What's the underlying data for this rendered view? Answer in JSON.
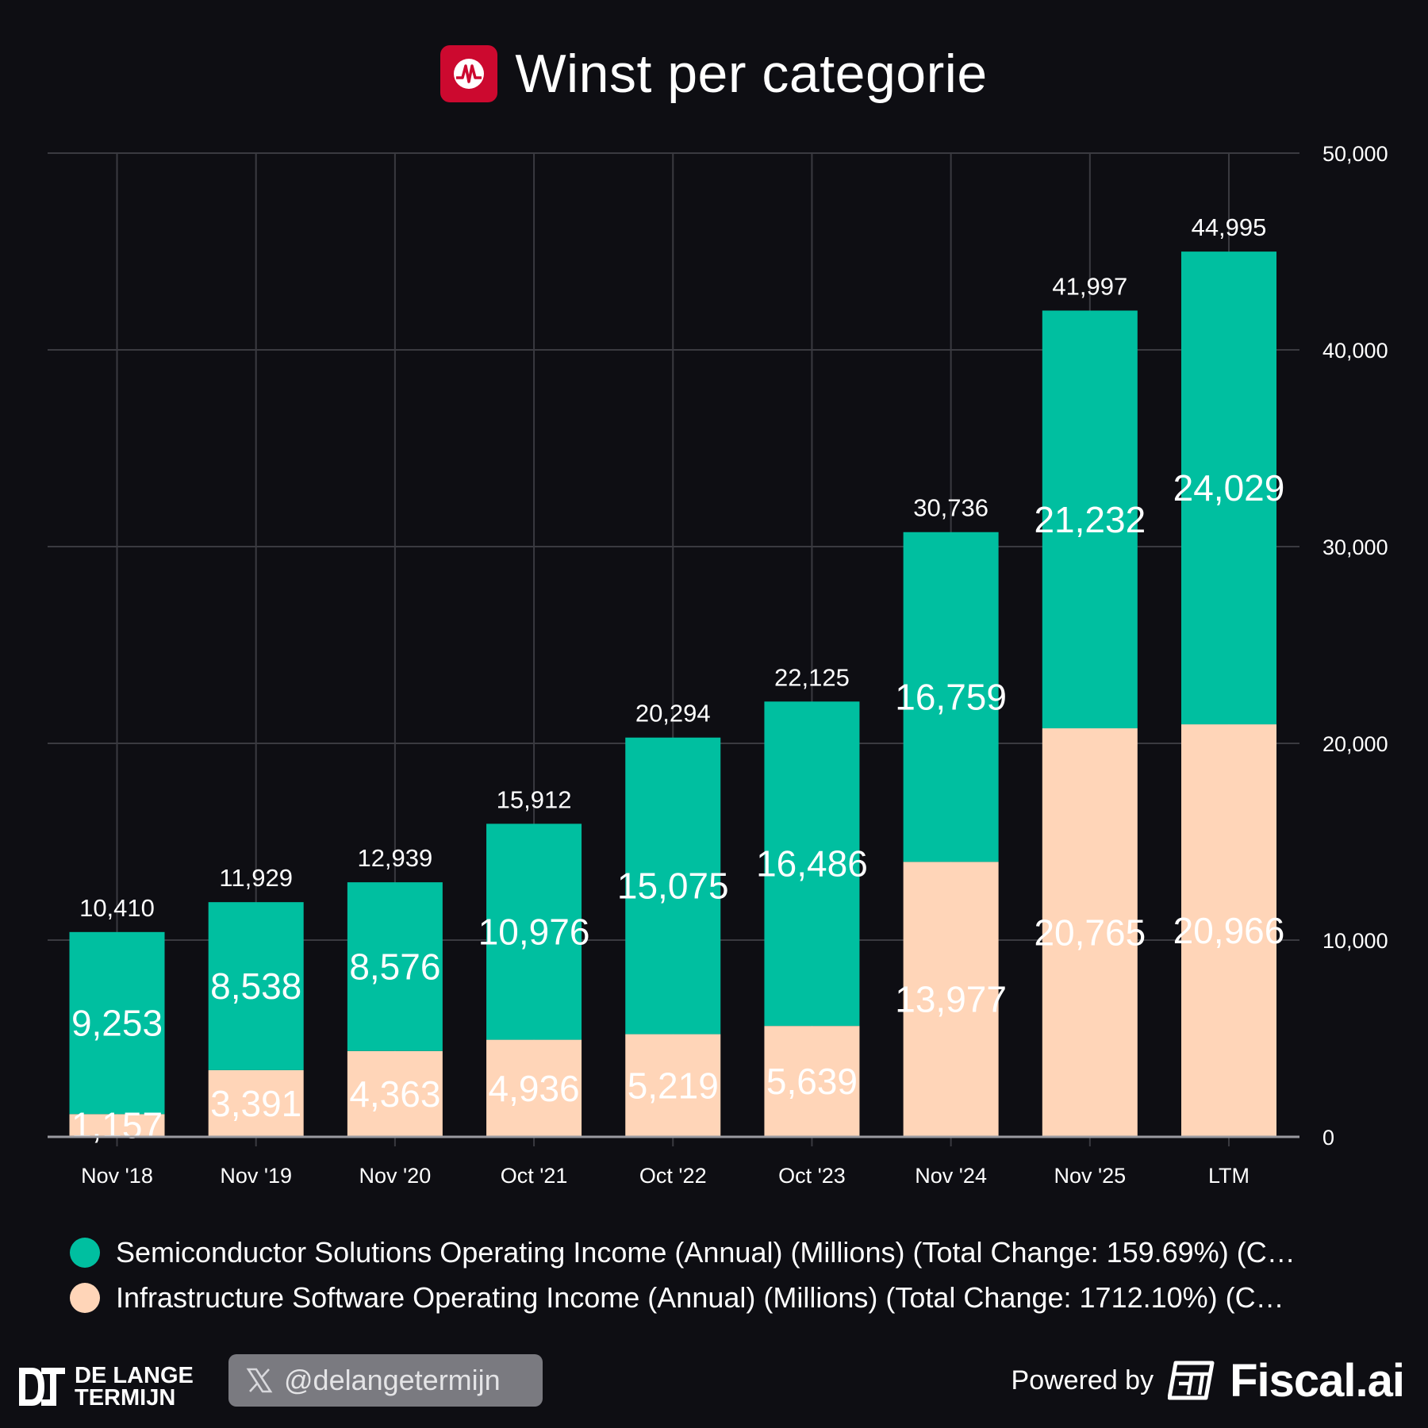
{
  "header": {
    "title": "Winst per categorie",
    "brand_color": "#cc092f"
  },
  "colors": {
    "semiconductor": "#00bfa0",
    "software": "#ffd5b8",
    "background": "#0e0e13",
    "grid": "#3a3a40",
    "axis": "#9a9aa0"
  },
  "chart_data": {
    "type": "bar",
    "stacked": true,
    "title": "Winst per categorie",
    "categories": [
      "Nov '18",
      "Nov '19",
      "Nov '20",
      "Oct '21",
      "Oct '22",
      "Oct '23",
      "Nov '24",
      "Nov '25",
      "LTM"
    ],
    "series": [
      {
        "name": "Infrastructure Software Operating Income (Annual) (Millions)",
        "values": [
          1157,
          3391,
          4363,
          4936,
          5219,
          5639,
          13977,
          20765,
          20966
        ],
        "labels": [
          "1,157",
          "3,391",
          "4,363",
          "4,936",
          "5,219",
          "5,639",
          "13,977",
          "20,765",
          "20,966"
        ]
      },
      {
        "name": "Semiconductor Solutions Operating Income (Annual) (Millions)",
        "values": [
          9253,
          8538,
          8576,
          10976,
          15075,
          16486,
          16759,
          21232,
          24029
        ],
        "labels": [
          "9,253",
          "8,538",
          "8,576",
          "10,976",
          "15,075",
          "16,486",
          "16,759",
          "21,232",
          "24,029"
        ]
      }
    ],
    "totals": [
      10410,
      11929,
      12939,
      15912,
      20294,
      22125,
      30736,
      41997,
      44995
    ],
    "total_labels": [
      "10,410",
      "11,929",
      "12,939",
      "15,912",
      "20,294",
      "22,125",
      "30,736",
      "41,997",
      "44,995"
    ],
    "ylim": [
      0,
      50000
    ],
    "yticks": [
      0,
      10000,
      20000,
      30000,
      40000,
      50000
    ],
    "ytick_labels": [
      "0",
      "10,000",
      "20,000",
      "30,000",
      "40,000",
      "50,000"
    ],
    "y_axis_side": "right",
    "grid": true
  },
  "legend": {
    "semiconductor_label": "Semiconductor Solutions Operating Income (Annual) (Millions) (Total Change: 159.69%) (C…",
    "software_label": "Infrastructure Software Operating Income (Annual) (Millions) (Total Change: 1712.10%) (C…"
  },
  "footer": {
    "brand_line1": "DE LANGE",
    "brand_line2": "TERMIJN",
    "social_handle": "@delangetermijn",
    "powered_by": "Powered by",
    "fiscal_brand": "Fiscal.ai"
  }
}
